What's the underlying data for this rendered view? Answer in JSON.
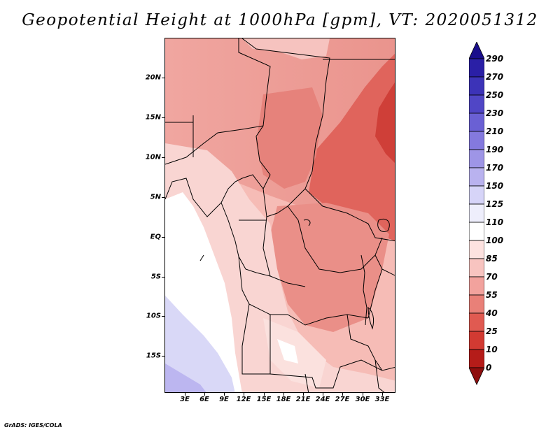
{
  "title": "Geopotential Height at 1000hPa [gpm], VT: 2020051312",
  "credit": "GrADS: IGES/COLA",
  "map": {
    "region": "Central Africa",
    "lat_labels": [
      "20N",
      "15N",
      "10N",
      "5N",
      "EQ",
      "5S",
      "10S",
      "15S"
    ],
    "lon_labels": [
      "3E",
      "6E",
      "9E",
      "12E",
      "15E",
      "18E",
      "21E",
      "24E",
      "27E",
      "30E",
      "33E"
    ]
  },
  "colorbar": {
    "levels": [
      "290",
      "270",
      "250",
      "230",
      "210",
      "190",
      "170",
      "150",
      "125",
      "110",
      "100",
      "85",
      "70",
      "55",
      "40",
      "25",
      "10",
      "0"
    ],
    "colors": [
      "#1a0e8c",
      "#2a1fa6",
      "#3c33b8",
      "#5046c6",
      "#6a60d4",
      "#8479de",
      "#9e95e6",
      "#b9b2ef",
      "#d6d4f8",
      "#eeeefc",
      "#ffffff",
      "#fde2e0",
      "#f8c4c0",
      "#f2a29d",
      "#e98078",
      "#e05a51",
      "#d23a32",
      "#b51c19",
      "#8e0e0e"
    ]
  }
}
